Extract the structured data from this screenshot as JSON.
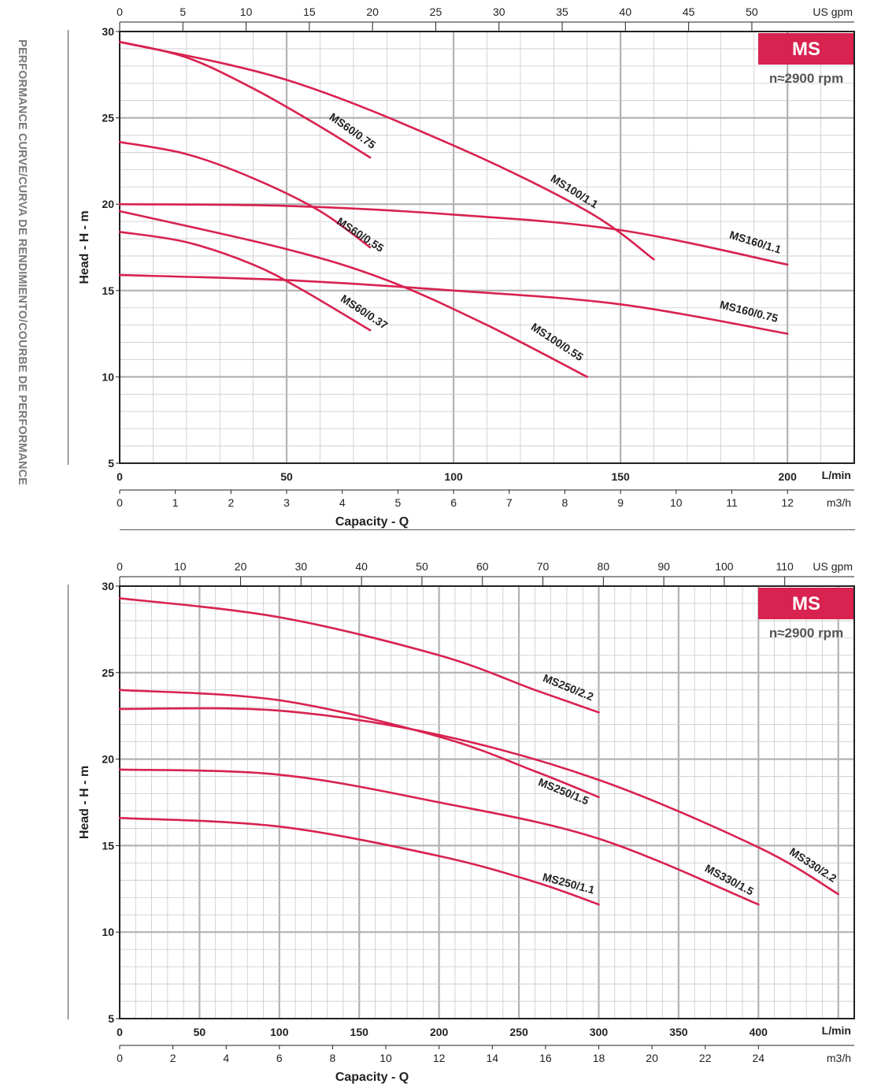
{
  "side_title": "PERFORMANCE CURVE/CURVA DE RENDIMIENTO/COURBE DE PERFORMANCE",
  "colors": {
    "curve": "#d8224f",
    "badge": "#d8224f",
    "grid": "#c9c9c9",
    "frame": "#222222"
  },
  "chart_data": [
    {
      "type": "line",
      "badge": "MS",
      "rpm": "n≈2900 rpm",
      "ylabel": "Head  - H - m",
      "xlabel": "Capacity - Q",
      "ylim": [
        5,
        30
      ],
      "xlim_lpm": [
        0,
        220
      ],
      "y_ticks": [
        5,
        10,
        15,
        20,
        25,
        30
      ],
      "x_ticks_lpm": [
        0,
        50,
        100,
        150,
        200
      ],
      "x_unit_lpm": "L/min",
      "x_ticks_m3h": [
        0,
        1,
        2,
        3,
        4,
        5,
        6,
        7,
        8,
        9,
        10,
        11,
        12
      ],
      "x_unit_m3h": "m3/h",
      "x_ticks_gpm": [
        0,
        5,
        10,
        15,
        20,
        25,
        30,
        35,
        40,
        45,
        50
      ],
      "x_unit_gpm": "US gpm",
      "grid": true,
      "series": [
        {
          "name": "MS60/0.75",
          "points": [
            [
              0,
              29.4
            ],
            [
              20,
              28.5
            ],
            [
              40,
              26.7
            ],
            [
              60,
              24.5
            ],
            [
              75,
              22.7
            ]
          ]
        },
        {
          "name": "MS60/0.55",
          "points": [
            [
              0,
              23.6
            ],
            [
              20,
              22.9
            ],
            [
              40,
              21.5
            ],
            [
              60,
              19.6
            ],
            [
              75,
              17.5
            ]
          ]
        },
        {
          "name": "MS60/0.37",
          "points": [
            [
              0,
              18.4
            ],
            [
              20,
              17.8
            ],
            [
              40,
              16.5
            ],
            [
              55,
              15.0
            ],
            [
              75,
              12.7
            ]
          ]
        },
        {
          "name": "MS100/1.1",
          "points": [
            [
              0,
              29.4
            ],
            [
              50,
              27.2
            ],
            [
              100,
              23.4
            ],
            [
              140,
              19.6
            ],
            [
              160,
              16.8
            ]
          ]
        },
        {
          "name": "MS100/0.55",
          "points": [
            [
              0,
              19.6
            ],
            [
              50,
              17.4
            ],
            [
              80,
              15.6
            ],
            [
              110,
              13.0
            ],
            [
              140,
              10.0
            ]
          ]
        },
        {
          "name": "MS160/1.1",
          "points": [
            [
              0,
              20.0
            ],
            [
              50,
              19.9
            ],
            [
              100,
              19.4
            ],
            [
              150,
              18.5
            ],
            [
              200,
              16.5
            ]
          ]
        },
        {
          "name": "MS160/0.75",
          "points": [
            [
              0,
              15.9
            ],
            [
              50,
              15.6
            ],
            [
              100,
              15.0
            ],
            [
              150,
              14.2
            ],
            [
              200,
              12.5
            ]
          ]
        }
      ]
    },
    {
      "type": "line",
      "badge": "MS",
      "rpm": "n≈2900 rpm",
      "ylabel": "Head  - H - m",
      "xlabel": "Capacity - Q",
      "ylim": [
        5,
        30
      ],
      "xlim_lpm": [
        0,
        460
      ],
      "y_ticks": [
        5,
        10,
        15,
        20,
        25,
        30
      ],
      "x_ticks_lpm": [
        0,
        50,
        100,
        150,
        200,
        250,
        300,
        350,
        400
      ],
      "x_unit_lpm": "L/min",
      "x_ticks_m3h": [
        0,
        2,
        4,
        6,
        8,
        10,
        12,
        14,
        16,
        18,
        20,
        22,
        24
      ],
      "x_unit_m3h": "m3/h",
      "x_ticks_gpm": [
        0,
        10,
        20,
        30,
        40,
        50,
        60,
        70,
        80,
        90,
        100,
        110
      ],
      "x_unit_gpm": "US gpm",
      "grid": true,
      "series": [
        {
          "name": "MS250/2.2",
          "points": [
            [
              0,
              29.3
            ],
            [
              100,
              28.2
            ],
            [
              200,
              26.0
            ],
            [
              260,
              24.0
            ],
            [
              300,
              22.7
            ]
          ]
        },
        {
          "name": "MS250/1.5",
          "points": [
            [
              0,
              24.0
            ],
            [
              100,
              23.4
            ],
            [
              200,
              21.3
            ],
            [
              260,
              19.3
            ],
            [
              300,
              17.8
            ]
          ]
        },
        {
          "name": "MS250/1.1",
          "points": [
            [
              0,
              16.6
            ],
            [
              100,
              16.1
            ],
            [
              200,
              14.4
            ],
            [
              260,
              12.9
            ],
            [
              300,
              11.6
            ]
          ]
        },
        {
          "name": "MS330/2.2",
          "points": [
            [
              0,
              22.9
            ],
            [
              100,
              22.8
            ],
            [
              200,
              21.4
            ],
            [
              300,
              18.8
            ],
            [
              400,
              14.9
            ],
            [
              450,
              12.2
            ]
          ]
        },
        {
          "name": "MS330/1.5",
          "points": [
            [
              0,
              19.4
            ],
            [
              100,
              19.1
            ],
            [
              200,
              17.5
            ],
            [
              300,
              15.4
            ],
            [
              400,
              11.6
            ]
          ]
        }
      ]
    }
  ]
}
